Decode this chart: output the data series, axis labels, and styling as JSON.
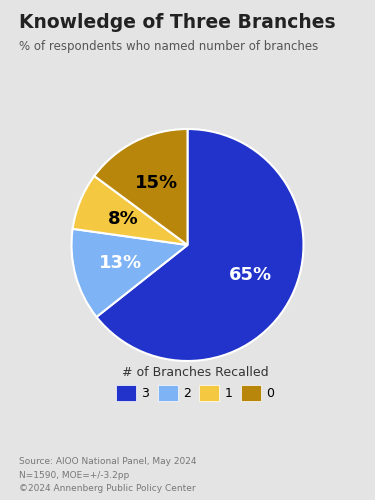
{
  "title": "Knowledge of Three Branches",
  "subtitle": "% of respondents who named number of branches",
  "slices": [
    65,
    13,
    8,
    15
  ],
  "labels": [
    "65%",
    "13%",
    "8%",
    "15%"
  ],
  "colors": [
    "#2233CC",
    "#7EB3F5",
    "#F5C842",
    "#B8860B"
  ],
  "legend_labels": [
    "3",
    "2",
    "1",
    "0"
  ],
  "legend_title": "# of Branches Recalled",
  "source_text": "Source: AIOO National Panel, May 2024\nN=1590, MOE=+/-3.2pp\n©2024 Annenberg Public Policy Center",
  "background_color": "#E4E4E4",
  "startangle": 90,
  "label_colors": [
    "white",
    "white",
    "black",
    "black"
  ],
  "label_fontsize": 13
}
